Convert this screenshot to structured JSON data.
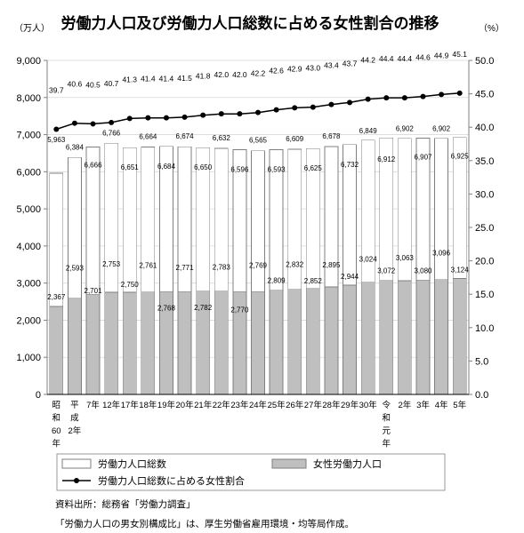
{
  "chart_data": {
    "type": "bar",
    "bar_mode": "overlay",
    "title": "労働力人口及び労働力人口総数に占める女性割合の推移",
    "y_left_unit": "（万人）",
    "y_right_unit": "（%）",
    "categories": [
      "昭和60年",
      "平成2年",
      "7年",
      "12年",
      "17年",
      "18年",
      "19年",
      "20年",
      "21年",
      "22年",
      "23年",
      "24年",
      "25年",
      "26年",
      "27年",
      "28年",
      "29年",
      "30年",
      "令和元年",
      "2年",
      "3年",
      "4年",
      "5年"
    ],
    "y_left_lim": [
      0,
      9000
    ],
    "y_left_ticks": [
      0,
      1000,
      2000,
      3000,
      4000,
      5000,
      6000,
      7000,
      8000,
      9000
    ],
    "y_right_lim": [
      0,
      50
    ],
    "y_right_ticks": [
      0,
      5,
      10,
      15,
      20,
      25,
      30,
      35,
      40,
      45,
      50
    ],
    "grid": true,
    "legend": "bottom",
    "series": [
      {
        "name": "労働力人口総数",
        "type": "bar",
        "axis": "left",
        "color": "#ffffff",
        "values": [
          5963,
          6384,
          6666,
          6766,
          6651,
          6664,
          6684,
          6674,
          6650,
          6632,
          6596,
          6565,
          6593,
          6609,
          6625,
          6678,
          6732,
          6849,
          6912,
          6902,
          6907,
          6902,
          6925
        ]
      },
      {
        "name": "女性労働力人口",
        "type": "bar",
        "axis": "left",
        "color": "#bfbfbf",
        "values": [
          2367,
          2593,
          2701,
          2753,
          2750,
          2761,
          2768,
          2771,
          2782,
          2783,
          2770,
          2769,
          2809,
          2832,
          2852,
          2895,
          2944,
          3024,
          3072,
          3063,
          3080,
          3096,
          3124
        ]
      },
      {
        "name": "労働力人口総数に占める女性割合",
        "type": "line",
        "axis": "right",
        "color": "#000000",
        "values": [
          39.7,
          40.6,
          40.5,
          40.7,
          41.3,
          41.4,
          41.4,
          41.5,
          41.8,
          42.0,
          42.0,
          42.2,
          42.6,
          42.9,
          43.0,
          43.4,
          43.7,
          44.2,
          44.4,
          44.4,
          44.6,
          44.9,
          45.1
        ]
      }
    ]
  },
  "notes": {
    "source": "資料出所：総務省「労働力調査」",
    "remark": "「労働力人口の男女別構成比」は、厚生労働省雇用環境・均等局作成。"
  }
}
